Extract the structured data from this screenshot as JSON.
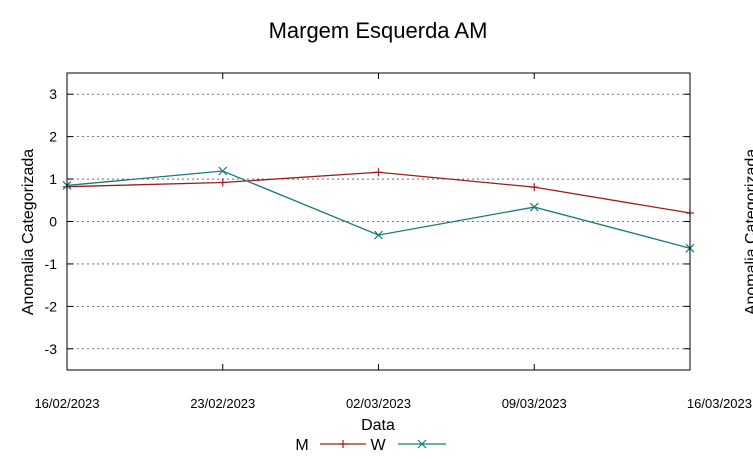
{
  "chart_data": {
    "type": "line",
    "title": "Margem Esquerda AM",
    "xlabel": "Data",
    "ylabel": "Anomalia Categorizada",
    "right_ylabel_partial": "Anomalia Categorizada",
    "x": [
      "16/02/2023",
      "23/02/2023",
      "02/03/2023",
      "09/03/2023",
      "16/03/2023"
    ],
    "x_tick_labels": [
      "16/02/2023",
      "23/02/2023",
      "02/03/2023",
      "09/03/2023",
      "16/03/2023"
    ],
    "ylim": [
      -3.5,
      3.5
    ],
    "y_ticks": [
      -3,
      -2,
      -1,
      0,
      1,
      2,
      3
    ],
    "grid": true,
    "legend_position": "bottom-center",
    "series": [
      {
        "name": "M",
        "values": [
          0.82,
          0.92,
          1.16,
          0.81,
          0.2
        ],
        "color": "#a01c1c",
        "marker": "plus"
      },
      {
        "name": "W",
        "values": [
          0.85,
          1.19,
          -0.32,
          0.34,
          -0.63
        ],
        "color": "#1a7a7a",
        "marker": "x"
      }
    ]
  }
}
